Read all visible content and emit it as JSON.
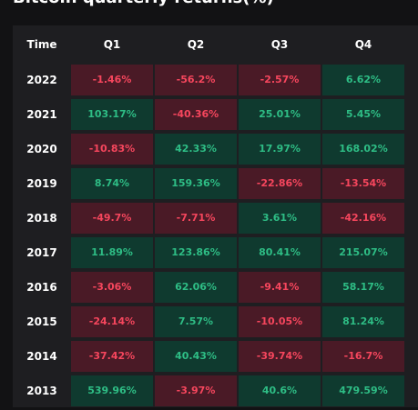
{
  "title": "Bitcoin quarterly returns(%)",
  "colors": {
    "positive_bg": "#0f3a2f",
    "positive_text": "#2ebd85",
    "negative_bg": "#4a1a26",
    "negative_text": "#f6465d"
  },
  "table": {
    "header": {
      "time": "Time",
      "q1": "Q1",
      "q2": "Q2",
      "q3": "Q3",
      "q4": "Q4"
    },
    "rows": [
      {
        "year": "2022",
        "q1": "-1.46%",
        "q2": "-56.2%",
        "q3": "-2.57%",
        "q4": "6.62%"
      },
      {
        "year": "2021",
        "q1": "103.17%",
        "q2": "-40.36%",
        "q3": "25.01%",
        "q4": "5.45%"
      },
      {
        "year": "2020",
        "q1": "-10.83%",
        "q2": "42.33%",
        "q3": "17.97%",
        "q4": "168.02%"
      },
      {
        "year": "2019",
        "q1": "8.74%",
        "q2": "159.36%",
        "q3": "-22.86%",
        "q4": "-13.54%"
      },
      {
        "year": "2018",
        "q1": "-49.7%",
        "q2": "-7.71%",
        "q3": "3.61%",
        "q4": "-42.16%"
      },
      {
        "year": "2017",
        "q1": "11.89%",
        "q2": "123.86%",
        "q3": "80.41%",
        "q4": "215.07%"
      },
      {
        "year": "2016",
        "q1": "-3.06%",
        "q2": "62.06%",
        "q3": "-9.41%",
        "q4": "58.17%"
      },
      {
        "year": "2015",
        "q1": "-24.14%",
        "q2": "7.57%",
        "q3": "-10.05%",
        "q4": "81.24%"
      },
      {
        "year": "2014",
        "q1": "-37.42%",
        "q2": "40.43%",
        "q3": "-39.74%",
        "q4": "-16.7%"
      },
      {
        "year": "2013",
        "q1": "539.96%",
        "q2": "-3.97%",
        "q3": "40.6%",
        "q4": "479.59%"
      }
    ]
  }
}
